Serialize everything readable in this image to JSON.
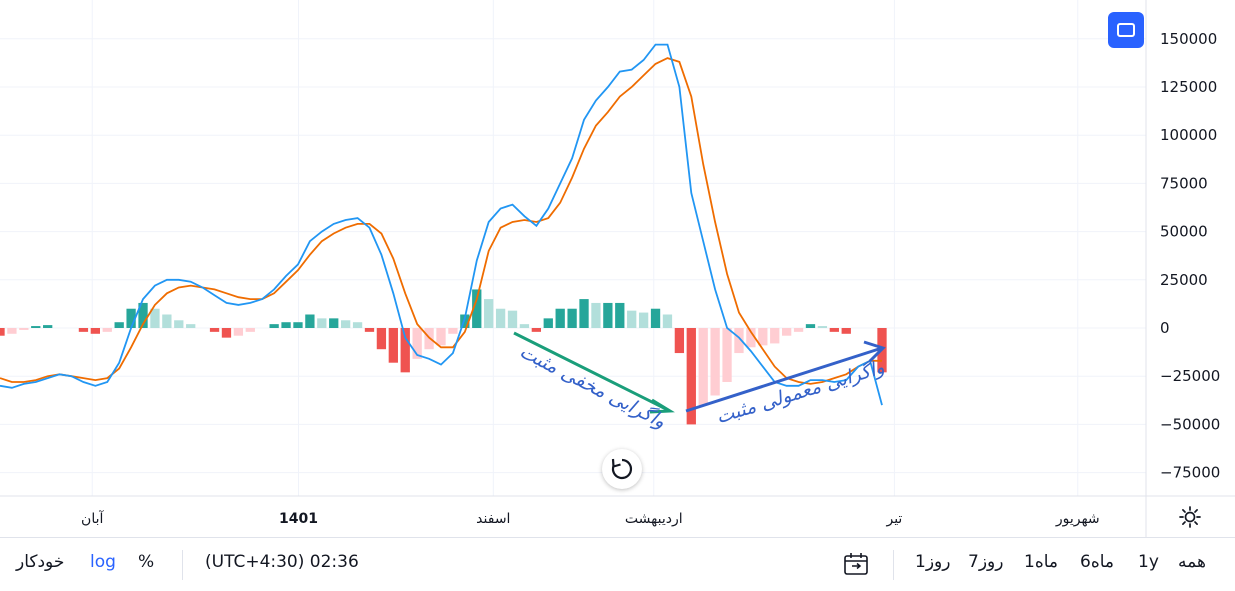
{
  "chart_data": {
    "type": "line",
    "y_ticks": [
      "150000",
      "125000",
      "100000",
      "75000",
      "50000",
      "25000",
      "0",
      "−25000",
      "−50000",
      "−75000"
    ],
    "y_values": [
      150000,
      125000,
      100000,
      75000,
      50000,
      25000,
      0,
      -25000,
      -50000,
      -75000
    ],
    "ylim": [
      -90000,
      165000
    ],
    "x_ticks": [
      {
        "label": "آبان",
        "bold": false,
        "pos": 0.07
      },
      {
        "label": "1401",
        "bold": true,
        "pos": 0.25
      },
      {
        "label": "اسفند",
        "bold": false,
        "pos": 0.42
      },
      {
        "label": "اردیبهشت",
        "bold": false,
        "pos": 0.56
      },
      {
        "label": "تیر",
        "bold": false,
        "pos": 0.77
      },
      {
        "label": "شهریور",
        "bold": false,
        "pos": 0.93
      }
    ],
    "macd_line": [
      -30000,
      -31000,
      -29000,
      -28000,
      -26000,
      -24000,
      -25000,
      -28000,
      -30000,
      -28000,
      -18000,
      0,
      15000,
      22000,
      25000,
      25000,
      24000,
      21000,
      17000,
      13000,
      12000,
      13000,
      15000,
      20000,
      27000,
      33000,
      45000,
      50000,
      54000,
      56000,
      57000,
      52000,
      38000,
      18000,
      -5000,
      -14000,
      -16000,
      -19000,
      -13000,
      5000,
      35000,
      55000,
      62000,
      64000,
      58000,
      53000,
      62000,
      75000,
      88000,
      108000,
      118000,
      125000,
      133000,
      134000,
      139000,
      147000,
      147000,
      125000,
      70000,
      45000,
      20000,
      0,
      -5000,
      -12000,
      -20000,
      -28000,
      -30000,
      -30000,
      -27000,
      -27000,
      -28000,
      -27000,
      -20000,
      -17000,
      -40000
    ],
    "signal_line": [
      -26000,
      -28000,
      -28000,
      -27000,
      -25000,
      -24000,
      -25000,
      -26000,
      -27000,
      -26000,
      -21000,
      -10000,
      2000,
      12000,
      18000,
      21000,
      22000,
      21000,
      20000,
      18000,
      16000,
      15000,
      15000,
      18000,
      24000,
      30000,
      38000,
      45000,
      49000,
      52000,
      54000,
      54000,
      49000,
      36000,
      18000,
      2000,
      -5000,
      -10000,
      -10000,
      -2000,
      15000,
      40000,
      52000,
      55000,
      56000,
      55000,
      57000,
      65000,
      78000,
      93000,
      105000,
      112000,
      120000,
      125000,
      131000,
      137000,
      140000,
      138000,
      120000,
      85000,
      55000,
      28000,
      8000,
      -2000,
      -11000,
      -20000,
      -26000,
      -28000,
      -29000,
      -28000,
      -26000,
      -24000,
      -20000,
      -17000,
      -17000
    ],
    "histogram": [
      -4000,
      -3000,
      -1000,
      1000,
      1500,
      0,
      0,
      -2000,
      -3000,
      -2000,
      3000,
      10000,
      13000,
      10000,
      7000,
      4000,
      2000,
      0,
      -2000,
      -5000,
      -4000,
      -2000,
      0,
      2000,
      3000,
      3000,
      7000,
      5000,
      5000,
      4000,
      3000,
      -2000,
      -11000,
      -18000,
      -23000,
      -16000,
      -11000,
      -9000,
      -3000,
      7000,
      20000,
      15000,
      10000,
      9000,
      2000,
      -2000,
      5000,
      10000,
      10000,
      15000,
      13000,
      13000,
      13000,
      9000,
      8000,
      10000,
      7000,
      -13000,
      -50000,
      -40000,
      -35000,
      -28000,
      -13000,
      -10000,
      -9000,
      -8000,
      -4000,
      -2000,
      2000,
      1000,
      -2000,
      -3000,
      0,
      0,
      -23000
    ],
    "annotations": [
      "واگرایی مخفی مثبت",
      "واگرایی معمولی مثبت"
    ],
    "grid": true,
    "colors": {
      "macd": "#2196f3",
      "signal": "#ef6c00",
      "hist_pos_strong": "#26a69a",
      "hist_pos_weak": "#b2dfdb",
      "hist_neg_strong": "#ef5350",
      "hist_neg_weak": "#ffcdd2",
      "annotation_green": "#1a9e7a",
      "annotation_blue": "#3461c9"
    }
  },
  "bottom_bar": {
    "ranges": [
      "همه",
      "1y",
      "6ماه",
      "1ماه",
      "7روز",
      "1روز"
    ],
    "time_label": "(UTC+4:30) 02:36",
    "percent_label": "%",
    "log_label": "log",
    "auto_label": "خودکار"
  },
  "icons": {
    "fullscreen": "fullscreen-icon",
    "reset": "reset-icon",
    "settings": "settings-icon",
    "date_range": "date-range-icon"
  }
}
